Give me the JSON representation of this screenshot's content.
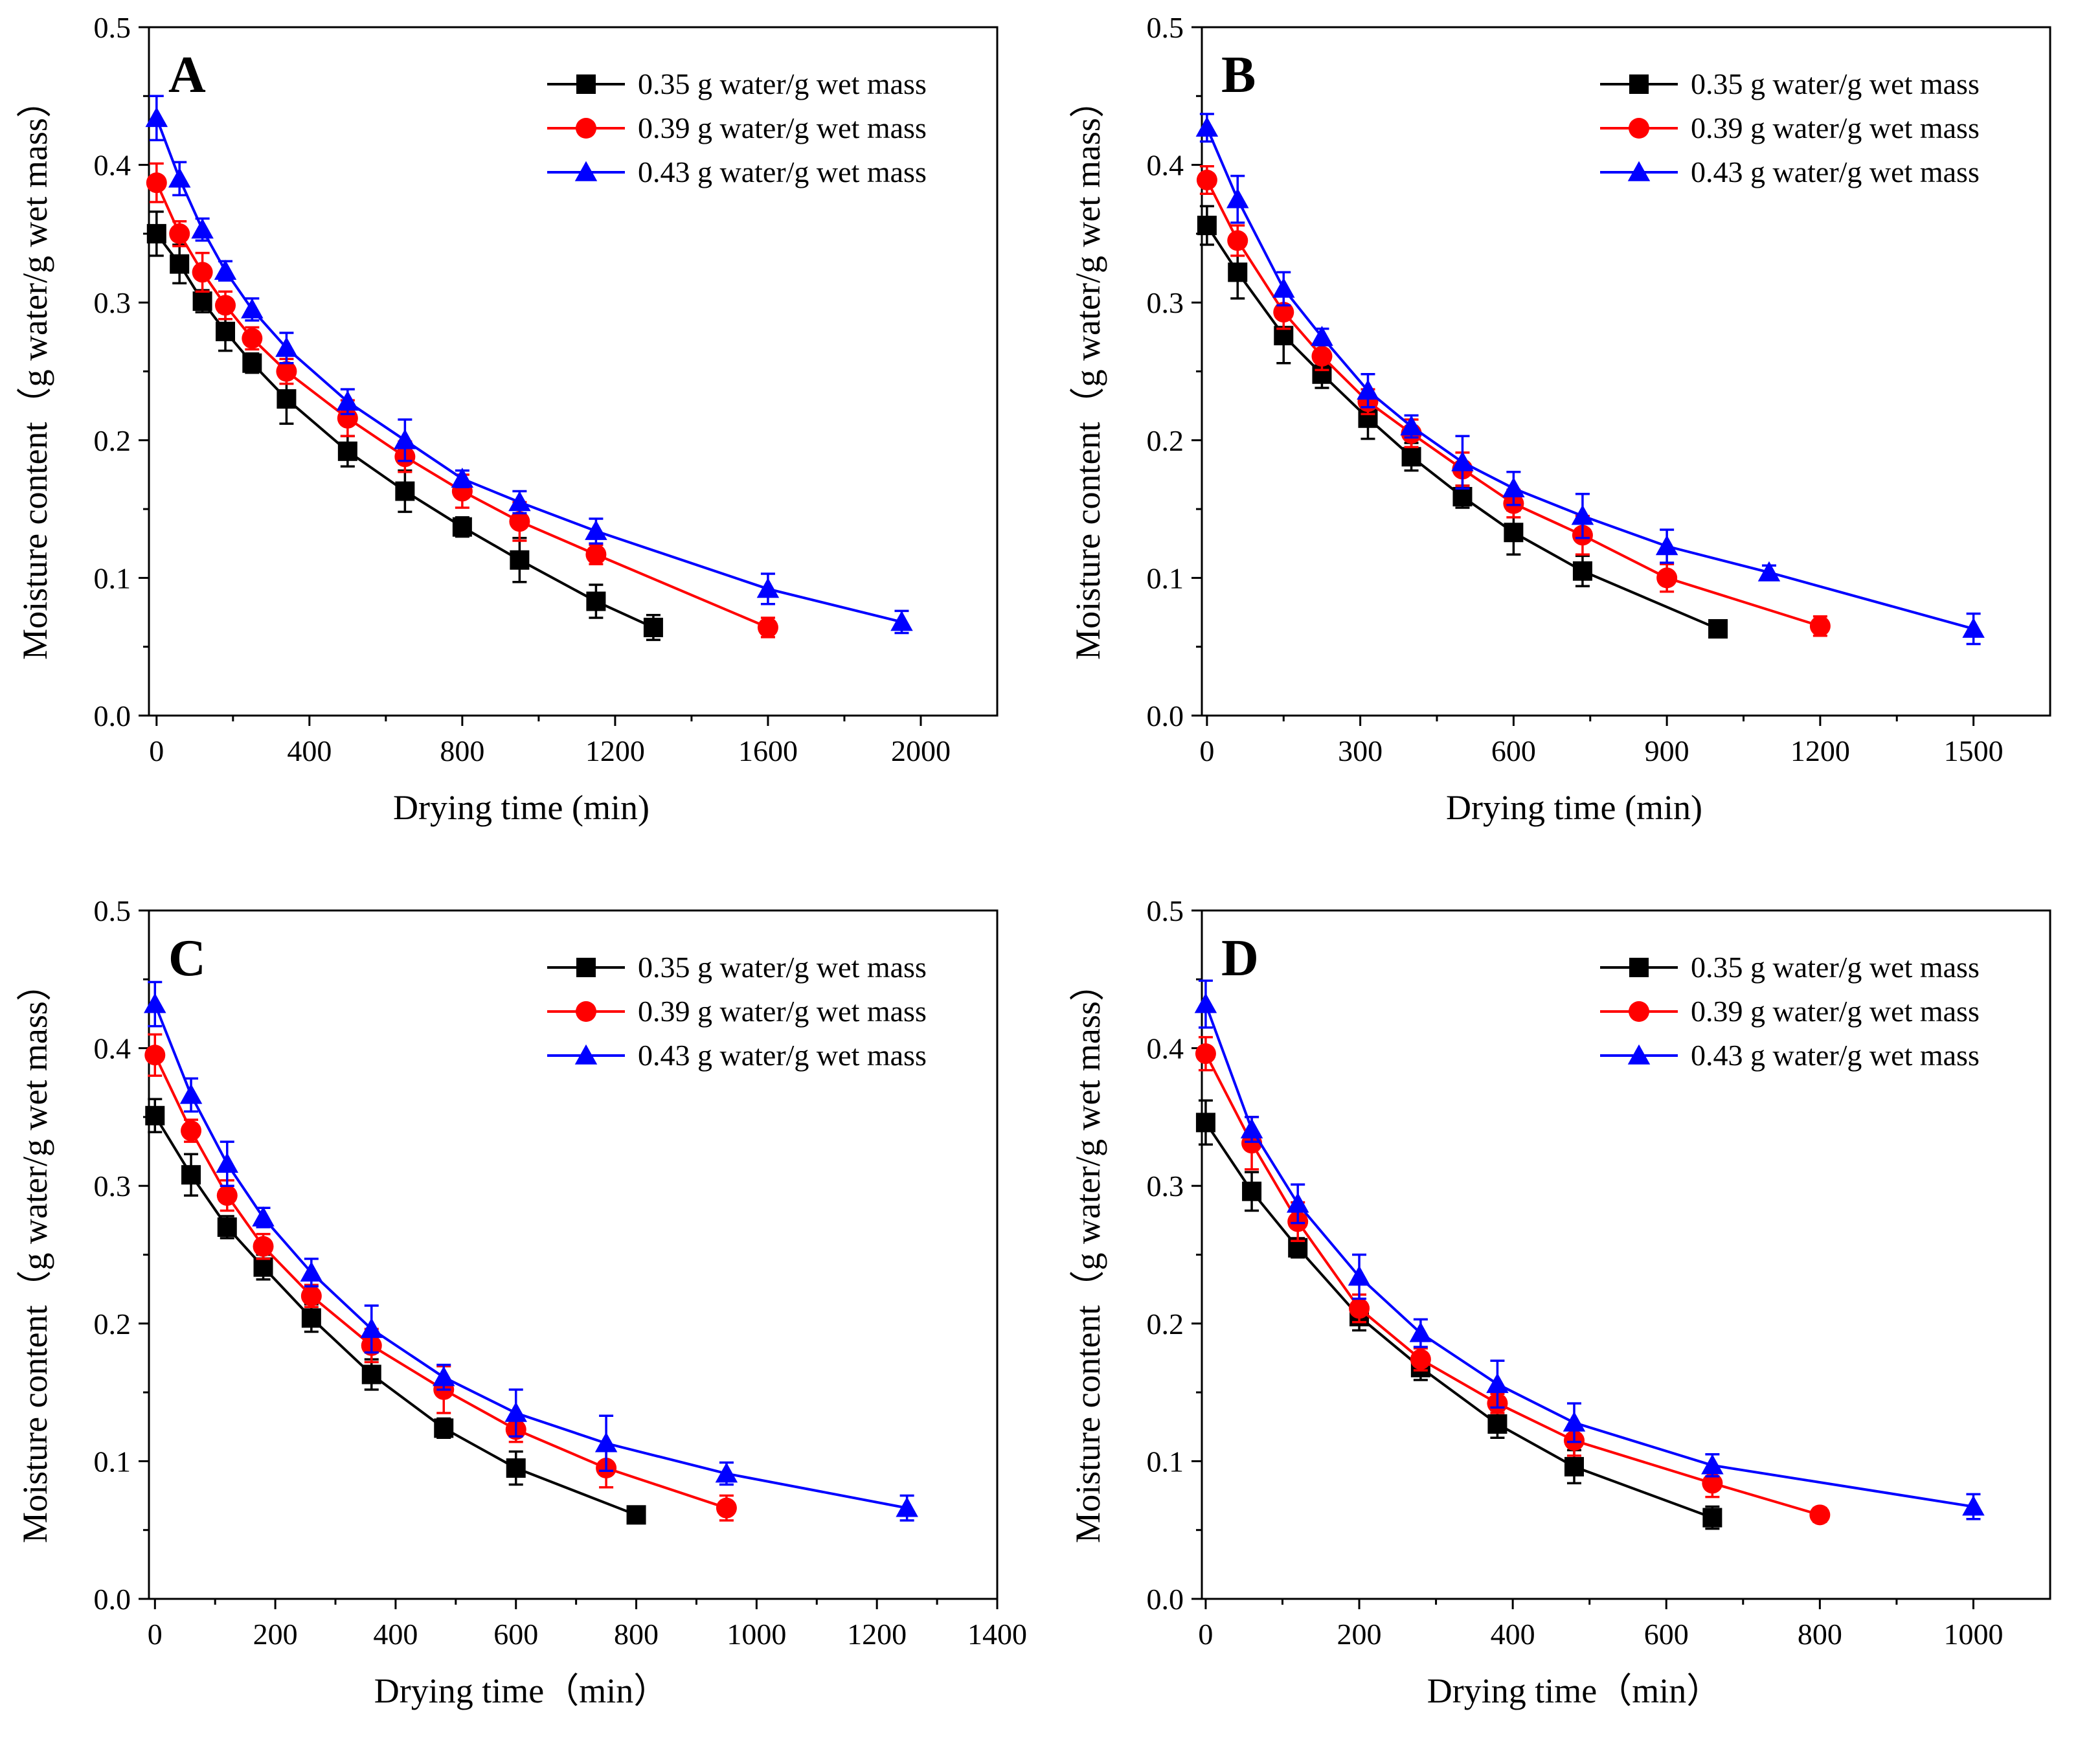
{
  "chart_data": [
    {
      "type": "line",
      "panel_label": "A",
      "xlabel": "Drying time (min)",
      "ylabel": "Moisture content（g water/g wet mass）",
      "xlim": [
        -20,
        2200
      ],
      "ylim": [
        0.0,
        0.5
      ],
      "xticks": [
        0,
        400,
        800,
        1200,
        1600,
        2000
      ],
      "yticks": [
        0.0,
        0.1,
        0.2,
        0.3,
        0.4,
        0.5
      ],
      "ytick_labels": [
        "0.0",
        "0.1",
        "0.2",
        "0.3",
        "0.4",
        "0.5"
      ],
      "legend_position": "top-right",
      "series": [
        {
          "name": "0.35 g water/g wet mass",
          "color": "#000000",
          "marker": "square",
          "x": [
            0,
            60,
            120,
            180,
            250,
            340,
            500,
            650,
            800,
            950,
            1150,
            1300
          ],
          "y": [
            0.35,
            0.328,
            0.301,
            0.279,
            0.256,
            0.23,
            0.192,
            0.163,
            0.137,
            0.113,
            0.083,
            0.064
          ],
          "err": [
            0.016,
            0.014,
            0.008,
            0.014,
            0.007,
            0.018,
            0.011,
            0.015,
            0.007,
            0.016,
            0.012,
            0.009
          ]
        },
        {
          "name": "0.39 g water/g wet mass",
          "color": "#ff0000",
          "marker": "circle",
          "x": [
            0,
            60,
            120,
            180,
            250,
            340,
            500,
            650,
            800,
            950,
            1150,
            1600
          ],
          "y": [
            0.387,
            0.35,
            0.322,
            0.298,
            0.274,
            0.25,
            0.216,
            0.188,
            0.163,
            0.141,
            0.117,
            0.064
          ],
          "err": [
            0.014,
            0.009,
            0.014,
            0.01,
            0.008,
            0.009,
            0.013,
            0.011,
            0.012,
            0.014,
            0.007,
            0.007
          ]
        },
        {
          "name": "0.43 g water/g wet mass",
          "color": "#0000ff",
          "marker": "triangle",
          "x": [
            0,
            60,
            120,
            180,
            250,
            340,
            500,
            650,
            800,
            950,
            1150,
            1600,
            1950
          ],
          "y": [
            0.434,
            0.39,
            0.353,
            0.323,
            0.295,
            0.267,
            0.228,
            0.2,
            0.172,
            0.155,
            0.134,
            0.092,
            0.068
          ],
          "err": [
            0.016,
            0.012,
            0.008,
            0.007,
            0.008,
            0.011,
            0.009,
            0.015,
            0.006,
            0.008,
            0.009,
            0.011,
            0.008
          ]
        }
      ]
    },
    {
      "type": "line",
      "panel_label": "B",
      "xlabel": "Drying time (min)",
      "ylabel": "Moisture content（g water/g wet mass）",
      "xlim": [
        -10,
        1650
      ],
      "ylim": [
        0.0,
        0.5
      ],
      "xticks": [
        0,
        300,
        600,
        900,
        1200,
        1500
      ],
      "yticks": [
        0.0,
        0.1,
        0.2,
        0.3,
        0.4,
        0.5
      ],
      "ytick_labels": [
        "0.0",
        "0.1",
        "0.2",
        "0.3",
        "0.4",
        "0.5"
      ],
      "legend_position": "top-right",
      "series": [
        {
          "name": "0.35 g water/g wet mass",
          "color": "#000000",
          "marker": "square",
          "x": [
            0,
            60,
            150,
            225,
            315,
            400,
            500,
            600,
            735,
            1000
          ],
          "y": [
            0.356,
            0.322,
            0.276,
            0.248,
            0.216,
            0.188,
            0.159,
            0.133,
            0.105,
            0.063
          ],
          "err": [
            0.014,
            0.019,
            0.02,
            0.01,
            0.015,
            0.01,
            0.008,
            0.016,
            0.011,
            0.006
          ]
        },
        {
          "name": "0.39 g water/g wet mass",
          "color": "#ff0000",
          "marker": "circle",
          "x": [
            0,
            60,
            150,
            225,
            315,
            400,
            500,
            600,
            735,
            900,
            1200
          ],
          "y": [
            0.389,
            0.345,
            0.293,
            0.261,
            0.228,
            0.205,
            0.179,
            0.154,
            0.131,
            0.1,
            0.065
          ],
          "err": [
            0.01,
            0.011,
            0.012,
            0.01,
            0.009,
            0.01,
            0.012,
            0.01,
            0.014,
            0.01,
            0.007
          ]
        },
        {
          "name": "0.43 g water/g wet mass",
          "color": "#0000ff",
          "marker": "triangle",
          "x": [
            0,
            60,
            150,
            225,
            315,
            400,
            500,
            600,
            735,
            900,
            1100,
            1500
          ],
          "y": [
            0.427,
            0.375,
            0.31,
            0.275,
            0.236,
            0.21,
            0.184,
            0.165,
            0.145,
            0.123,
            0.104,
            0.063
          ],
          "err": [
            0.01,
            0.017,
            0.012,
            0.006,
            0.012,
            0.008,
            0.019,
            0.012,
            0.016,
            0.012,
            0.005,
            0.011
          ]
        }
      ]
    },
    {
      "type": "line",
      "panel_label": "C",
      "xlabel": "Drying time（min）",
      "ylabel": "Moisture content（g water/g wet mass）",
      "xlim": [
        -10,
        1400
      ],
      "ylim": [
        0.0,
        0.5
      ],
      "xticks": [
        0,
        200,
        400,
        600,
        800,
        1000,
        1200,
        1400
      ],
      "yticks": [
        0.0,
        0.1,
        0.2,
        0.3,
        0.4,
        0.5
      ],
      "ytick_labels": [
        "0.0",
        "0.1",
        "0.2",
        "0.3",
        "0.4",
        "0.5"
      ],
      "legend_position": "top-right",
      "series": [
        {
          "name": "0.35 g water/g wet mass",
          "color": "#000000",
          "marker": "square",
          "x": [
            0,
            60,
            120,
            180,
            260,
            360,
            480,
            600,
            800
          ],
          "y": [
            0.351,
            0.308,
            0.27,
            0.241,
            0.204,
            0.163,
            0.124,
            0.095,
            0.061
          ],
          "err": [
            0.012,
            0.015,
            0.008,
            0.009,
            0.01,
            0.011,
            0.007,
            0.012,
            0.005
          ]
        },
        {
          "name": "0.39 g water/g wet mass",
          "color": "#ff0000",
          "marker": "circle",
          "x": [
            0,
            60,
            120,
            180,
            260,
            360,
            480,
            600,
            750,
            950
          ],
          "y": [
            0.395,
            0.34,
            0.293,
            0.256,
            0.22,
            0.184,
            0.152,
            0.123,
            0.095,
            0.066
          ],
          "err": [
            0.015,
            0.008,
            0.011,
            0.009,
            0.008,
            0.012,
            0.017,
            0.009,
            0.014,
            0.009
          ]
        },
        {
          "name": "0.43 g water/g wet mass",
          "color": "#0000ff",
          "marker": "triangle",
          "x": [
            0,
            60,
            120,
            180,
            260,
            360,
            480,
            600,
            750,
            950,
            1250
          ],
          "y": [
            0.432,
            0.366,
            0.316,
            0.277,
            0.237,
            0.196,
            0.161,
            0.135,
            0.113,
            0.091,
            0.066
          ],
          "err": [
            0.016,
            0.012,
            0.016,
            0.007,
            0.01,
            0.017,
            0.009,
            0.017,
            0.02,
            0.008,
            0.009
          ]
        }
      ]
    },
    {
      "type": "line",
      "panel_label": "D",
      "xlabel": "Drying time（min）",
      "ylabel": "Moisture content（g water/g wet mass）",
      "xlim": [
        -5,
        1100
      ],
      "ylim": [
        0.0,
        0.5
      ],
      "xticks": [
        0,
        200,
        400,
        600,
        800,
        1000
      ],
      "yticks": [
        0.0,
        0.1,
        0.2,
        0.3,
        0.4,
        0.5
      ],
      "ytick_labels": [
        "0.0",
        "0.1",
        "0.2",
        "0.3",
        "0.4",
        "0.5"
      ],
      "legend_position": "top-right",
      "series": [
        {
          "name": "0.35 g water/g wet mass",
          "color": "#000000",
          "marker": "square",
          "x": [
            0,
            60,
            120,
            200,
            280,
            380,
            480,
            660
          ],
          "y": [
            0.346,
            0.296,
            0.255,
            0.205,
            0.168,
            0.127,
            0.096,
            0.059
          ],
          "err": [
            0.016,
            0.014,
            0.007,
            0.01,
            0.009,
            0.01,
            0.012,
            0.008
          ]
        },
        {
          "name": "0.39 g water/g wet mass",
          "color": "#ff0000",
          "marker": "circle",
          "x": [
            0,
            60,
            120,
            200,
            280,
            380,
            480,
            660,
            800
          ],
          "y": [
            0.396,
            0.331,
            0.274,
            0.211,
            0.174,
            0.142,
            0.115,
            0.084,
            0.061
          ],
          "err": [
            0.012,
            0.019,
            0.014,
            0.01,
            0.008,
            0.007,
            0.011,
            0.01,
            0.005
          ]
        },
        {
          "name": "0.43 g water/g wet mass",
          "color": "#0000ff",
          "marker": "triangle",
          "x": [
            0,
            60,
            120,
            200,
            280,
            380,
            480,
            660,
            1000
          ],
          "y": [
            0.432,
            0.341,
            0.287,
            0.234,
            0.193,
            0.156,
            0.128,
            0.097,
            0.067
          ],
          "err": [
            0.017,
            0.009,
            0.014,
            0.016,
            0.01,
            0.017,
            0.014,
            0.008,
            0.009
          ]
        }
      ]
    }
  ]
}
